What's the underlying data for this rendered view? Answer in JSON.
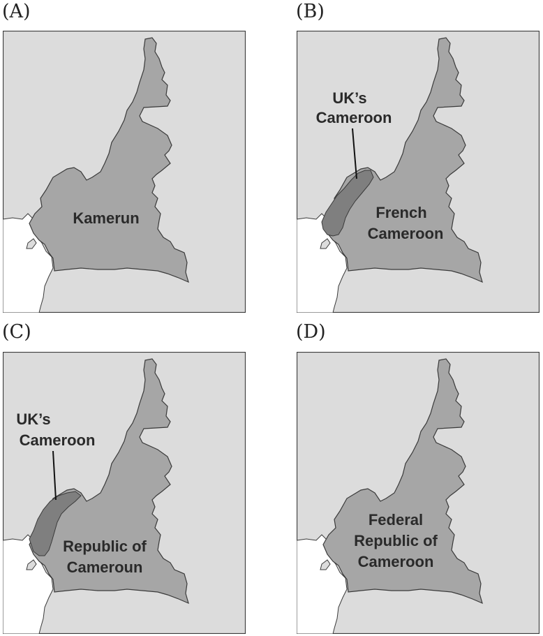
{
  "panels": [
    {
      "label": "(A)",
      "map_labels": [
        "Kamerun"
      ]
    },
    {
      "label": "(B)",
      "map_labels": [
        "UK’s",
        "Cameroon",
        "French",
        "Cameroon"
      ]
    },
    {
      "label": "(C)",
      "map_labels": [
        "UK’s",
        "Cameroon",
        "Republic of",
        "Cameroun"
      ]
    },
    {
      "label": "(D)",
      "map_labels": [
        "Federal",
        "Republic of",
        "Cameroon"
      ]
    }
  ],
  "colors": {
    "background": "#dcdcdc",
    "sea": "#ffffff",
    "country": "#a6a6a6",
    "uk_region": "#7f7f7f",
    "border": "#3a3a3a"
  }
}
